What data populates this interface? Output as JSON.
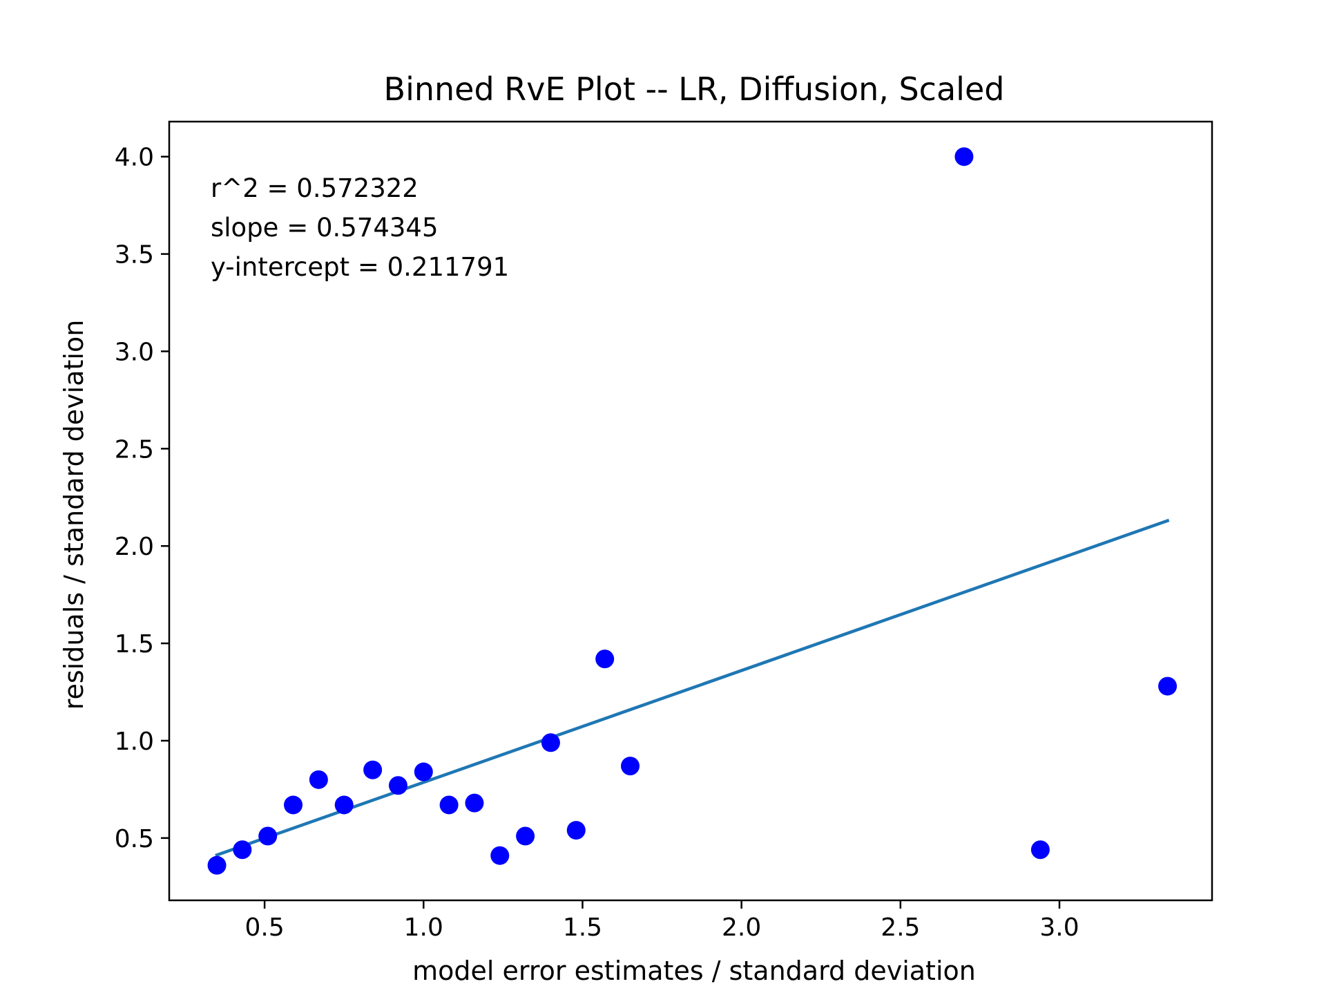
{
  "chart_data": {
    "type": "scatter",
    "title": "Binned RvE Plot -- LR, Diffusion, Scaled",
    "xlabel": "model error estimates / standard deviation",
    "ylabel": "residuals / standard deviation",
    "xlim": [
      0.2,
      3.48
    ],
    "ylim": [
      0.18,
      4.18
    ],
    "xticks": [
      "0.5",
      "1.0",
      "1.5",
      "2.0",
      "2.5",
      "3.0"
    ],
    "xtick_values": [
      0.5,
      1.0,
      1.5,
      2.0,
      2.5,
      3.0
    ],
    "yticks": [
      "0.5",
      "1.0",
      "1.5",
      "2.0",
      "2.5",
      "3.0",
      "3.5",
      "4.0"
    ],
    "ytick_values": [
      0.5,
      1.0,
      1.5,
      2.0,
      2.5,
      3.0,
      3.5,
      4.0
    ],
    "grid": false,
    "annotations": [
      "r^2 = 0.572322",
      "slope = 0.574345",
      "y-intercept = 0.211791"
    ],
    "colors": {
      "points": "#0000ff",
      "fit_line": "#1f77b4"
    },
    "series": [
      {
        "type": "scatter",
        "x": [
          0.35,
          0.43,
          0.51,
          0.59,
          0.67,
          0.75,
          0.84,
          0.92,
          1.0,
          1.08,
          1.16,
          1.24,
          1.32,
          1.4,
          1.48,
          1.57,
          1.65,
          2.7,
          2.94,
          3.34
        ],
        "y": [
          0.36,
          0.44,
          0.51,
          0.67,
          0.8,
          0.67,
          0.85,
          0.77,
          0.84,
          0.67,
          0.68,
          0.41,
          0.51,
          0.99,
          0.54,
          1.42,
          0.87,
          4.0,
          0.44,
          1.28
        ]
      },
      {
        "type": "line",
        "x": [
          0.35,
          3.34
        ],
        "y": [
          0.4128,
          2.13
        ]
      }
    ]
  }
}
